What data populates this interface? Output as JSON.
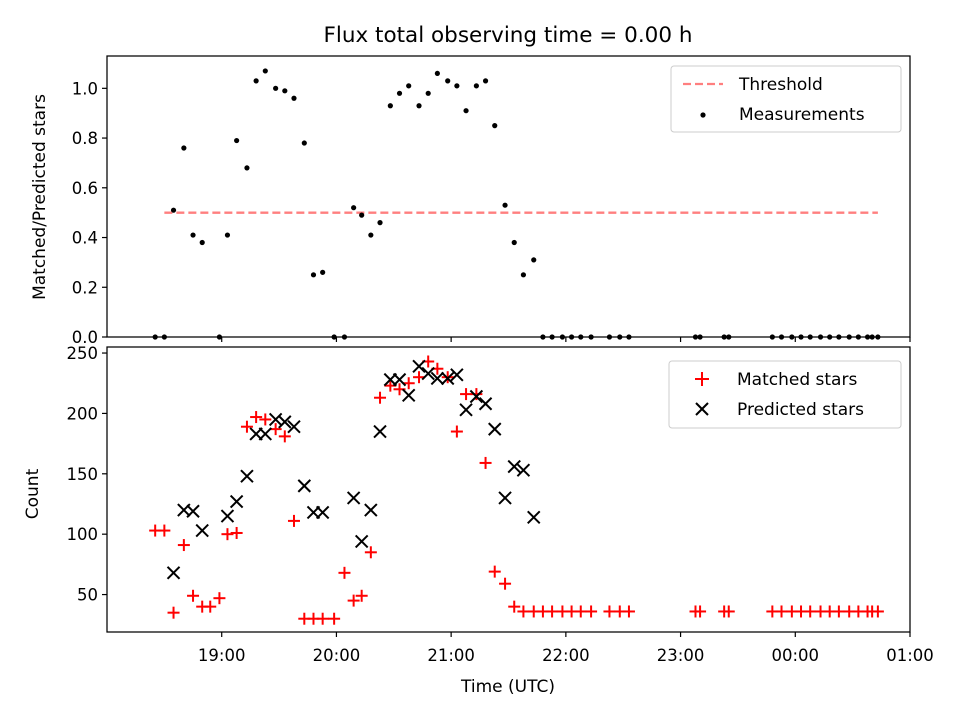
{
  "title": "Flux total observing time = 0.00 h",
  "chart_data": [
    {
      "type": "scatter",
      "ylabel": "Matched/Predicted stars",
      "ylim": [
        0,
        1.13
      ],
      "yticks": [
        0.0,
        0.2,
        0.4,
        0.6,
        0.8,
        1.0
      ],
      "ytick_labels": [
        "0.0",
        "0.2",
        "0.4",
        "0.6",
        "0.8",
        "1.0"
      ],
      "legend_position": "top-right",
      "threshold": {
        "name": "Threshold",
        "value": 0.5,
        "x_range": [
          18.5,
          24.72
        ],
        "color": "#ff7f7f"
      },
      "series": [
        {
          "name": "Measurements",
          "color": "#000000",
          "x": [
            18.42,
            18.5,
            18.58,
            18.67,
            18.75,
            18.83,
            18.98,
            19.05,
            19.13,
            19.22,
            19.3,
            19.38,
            19.47,
            19.55,
            19.63,
            19.72,
            19.8,
            19.88,
            19.98,
            20.07,
            20.15,
            20.22,
            20.3,
            20.38,
            20.47,
            20.55,
            20.63,
            20.72,
            20.8,
            20.88,
            20.97,
            21.05,
            21.13,
            21.22,
            21.3,
            21.38,
            21.47,
            21.55,
            21.63,
            21.72,
            21.8,
            21.88,
            21.97,
            22.05,
            22.13,
            22.22,
            22.38,
            22.47,
            22.55,
            23.13,
            23.17,
            23.38,
            23.42,
            23.8,
            23.88,
            23.97,
            24.05,
            24.13,
            24.22,
            24.3,
            24.38,
            24.47,
            24.55,
            24.63,
            24.67,
            24.72
          ],
          "y": [
            0,
            0,
            0.51,
            0.76,
            0.41,
            0.38,
            0,
            0.41,
            0.79,
            0.68,
            1.03,
            1.07,
            1.0,
            0.99,
            0.96,
            0.78,
            0.25,
            0.26,
            0,
            0,
            0.52,
            0.49,
            0.41,
            0.46,
            0.93,
            0.98,
            1.01,
            0.93,
            0.98,
            1.06,
            1.03,
            1.01,
            0.91,
            1.01,
            1.03,
            0.85,
            0.53,
            0.38,
            0.25,
            0.31,
            0,
            0,
            0,
            0,
            0,
            0,
            0,
            0,
            0,
            0,
            0,
            0,
            0,
            0,
            0,
            0,
            0,
            0,
            0,
            0,
            0,
            0,
            0,
            0,
            0,
            0
          ]
        }
      ]
    },
    {
      "type": "scatter",
      "xlabel": "Time (UTC)",
      "ylabel": "Count",
      "ylim": [
        19,
        255
      ],
      "yticks": [
        50,
        100,
        150,
        200,
        250
      ],
      "ytick_labels": [
        "50",
        "100",
        "150",
        "200",
        "250"
      ],
      "xlim": [
        18.0,
        25.0
      ],
      "xticks": [
        19,
        20,
        21,
        22,
        23,
        24,
        25
      ],
      "xtick_labels": [
        "19:00",
        "20:00",
        "21:00",
        "22:00",
        "23:00",
        "00:00",
        "01:00"
      ],
      "legend_position": "top-right",
      "series": [
        {
          "name": "Matched stars",
          "color": "#ff0000",
          "marker": "+",
          "x": [
            18.42,
            18.5,
            18.58,
            18.67,
            18.75,
            18.83,
            18.9,
            18.98,
            19.05,
            19.13,
            19.22,
            19.3,
            19.38,
            19.47,
            19.55,
            19.63,
            19.72,
            19.8,
            19.88,
            19.98,
            20.07,
            20.15,
            20.22,
            20.3,
            20.38,
            20.47,
            20.55,
            20.63,
            20.72,
            20.8,
            20.88,
            20.97,
            21.05,
            21.13,
            21.22,
            21.3,
            21.38,
            21.47,
            21.55,
            21.63,
            21.72,
            21.8,
            21.88,
            21.97,
            22.05,
            22.13,
            22.22,
            22.38,
            22.47,
            22.55,
            23.13,
            23.17,
            23.38,
            23.42,
            23.8,
            23.88,
            23.97,
            24.05,
            24.13,
            24.22,
            24.3,
            24.38,
            24.47,
            24.55,
            24.63,
            24.67,
            24.72
          ],
          "y": [
            103,
            103,
            35,
            91,
            49,
            40,
            40,
            47,
            100,
            101,
            189,
            197,
            195,
            187,
            181,
            111,
            30,
            30,
            30,
            30,
            68,
            45,
            49,
            85,
            213,
            223,
            220,
            225,
            230,
            243,
            237,
            230,
            185,
            216,
            216,
            159,
            69,
            59,
            40,
            36,
            36,
            36,
            36,
            36,
            36,
            36,
            36,
            36,
            36,
            36,
            36,
            36,
            36,
            36,
            36,
            36,
            36,
            36,
            36,
            36,
            36,
            36,
            36,
            36,
            36,
            36,
            36
          ]
        },
        {
          "name": "Predicted stars",
          "color": "#000000",
          "marker": "x",
          "x": [
            18.58,
            18.67,
            18.75,
            18.83,
            19.05,
            19.13,
            19.22,
            19.3,
            19.38,
            19.47,
            19.55,
            19.63,
            19.72,
            19.8,
            19.88,
            20.15,
            20.22,
            20.3,
            20.38,
            20.47,
            20.55,
            20.63,
            20.72,
            20.8,
            20.88,
            20.97,
            21.05,
            21.13,
            21.22,
            21.3,
            21.38,
            21.47,
            21.55,
            21.63,
            21.72
          ],
          "y": [
            68,
            120,
            119,
            103,
            115,
            127,
            148,
            183,
            183,
            195,
            193,
            189,
            140,
            118,
            118,
            130,
            94,
            120,
            185,
            228,
            228,
            215,
            239,
            233,
            229,
            229,
            232,
            203,
            214,
            208,
            187,
            130,
            156,
            153,
            114
          ]
        }
      ]
    }
  ]
}
